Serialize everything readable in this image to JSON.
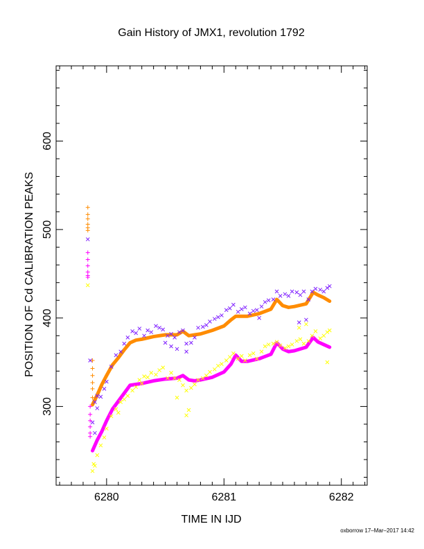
{
  "chart_data": {
    "type": "scatter",
    "title": "Gain History of JMX1, revolution 1792",
    "xlabel": "TIME IN IJD",
    "ylabel": "POSITION OF Cd CALIBRATION PEAKS",
    "xlim": [
      6279.57,
      6282.22
    ],
    "ylim": [
      211,
      685
    ],
    "x_ticks": [
      "6280",
      "6281",
      "6282"
    ],
    "y_ticks": [
      "300",
      "400",
      "500",
      "600"
    ],
    "x_tick_values": [
      6280,
      6281,
      6282
    ],
    "y_tick_values": [
      300,
      400,
      500,
      600
    ],
    "grid": false,
    "colors": {
      "orange": "#ff8c00",
      "purple": "#7f1fff",
      "magenta": "#ff00ff",
      "yellow": "#ffff00"
    },
    "series": [
      {
        "color": "#ff8c00",
        "marker": "line",
        "x": [
          6279.88,
          6279.92,
          6279.96,
          6280.0,
          6280.05,
          6280.1,
          6280.15,
          6280.2,
          6280.25,
          6280.3,
          6280.4,
          6280.5,
          6280.6,
          6280.65,
          6280.7,
          6280.75,
          6280.8,
          6280.9,
          6281.0,
          6281.06,
          6281.1,
          6281.15,
          6281.2,
          6281.3,
          6281.4,
          6281.45,
          6281.5,
          6281.55,
          6281.6,
          6281.7,
          6281.76,
          6281.8,
          6281.85,
          6281.9
        ],
        "y": [
          302,
          313,
          325,
          335,
          347,
          355,
          364,
          372,
          375,
          376,
          379,
          381,
          381,
          385,
          380,
          381,
          382,
          386,
          391,
          398,
          402,
          402,
          402,
          405,
          410,
          421,
          414,
          412,
          413,
          416,
          429,
          426,
          423,
          419
        ]
      },
      {
        "color": "#ff8c00",
        "marker": "plus",
        "x": [
          6279.84,
          6279.84,
          6279.84,
          6279.84,
          6279.84,
          6279.84,
          6279.88,
          6279.88,
          6279.88,
          6279.88,
          6279.88,
          6279.88
        ],
        "y": [
          525,
          517,
          512,
          506,
          502,
          499,
          352,
          343,
          335,
          327,
          320,
          310
        ]
      },
      {
        "color": "#7f1fff",
        "marker": "cross",
        "x": [
          6279.84,
          6279.86,
          6279.88,
          6279.9,
          6279.92,
          6279.95,
          6279.98,
          6280.0,
          6280.04,
          6280.08,
          6280.12,
          6280.15,
          6280.18,
          6280.22,
          6280.25,
          6280.28,
          6280.32,
          6280.35,
          6280.38,
          6280.42,
          6280.45,
          6280.48,
          6280.52,
          6280.55,
          6280.58,
          6280.62,
          6280.65,
          6280.68,
          6280.72,
          6280.75,
          6280.78,
          6280.82,
          6280.85,
          6280.88,
          6280.92,
          6280.95,
          6280.98,
          6281.02,
          6281.05,
          6281.08,
          6281.12,
          6281.15,
          6281.18,
          6281.22,
          6281.25,
          6281.28,
          6281.32,
          6281.35,
          6281.38,
          6281.42,
          6281.45,
          6281.48,
          6281.52,
          6281.55,
          6281.58,
          6281.62,
          6281.65,
          6281.68,
          6281.72,
          6281.75,
          6281.78,
          6281.82,
          6281.85,
          6281.88,
          6281.9,
          6280.6,
          6280.68,
          6280.55,
          6281.64,
          6281.7,
          6279.9,
          6279.92,
          6280.5,
          6281.3
        ],
        "y": [
          489,
          352,
          282,
          305,
          298,
          311,
          320,
          328,
          345,
          358,
          362,
          371,
          378,
          385,
          383,
          388,
          380,
          386,
          384,
          391,
          389,
          387,
          380,
          382,
          378,
          384,
          386,
          371,
          372,
          378,
          389,
          390,
          392,
          396,
          399,
          401,
          403,
          409,
          411,
          415,
          407,
          410,
          412,
          405,
          408,
          409,
          413,
          418,
          420,
          421,
          430,
          425,
          427,
          425,
          430,
          429,
          426,
          430,
          421,
          430,
          433,
          432,
          430,
          434,
          436,
          365,
          362,
          368,
          395,
          398,
          270,
          312,
          372,
          400
        ]
      },
      {
        "color": "#ff00ff",
        "marker": "line",
        "x": [
          6279.88,
          6279.92,
          6279.96,
          6280.0,
          6280.05,
          6280.1,
          6280.15,
          6280.2,
          6280.25,
          6280.3,
          6280.4,
          6280.5,
          6280.6,
          6280.65,
          6280.7,
          6280.75,
          6280.8,
          6280.9,
          6281.0,
          6281.06,
          6281.1,
          6281.15,
          6281.2,
          6281.3,
          6281.4,
          6281.45,
          6281.5,
          6281.55,
          6281.6,
          6281.7,
          6281.76,
          6281.8,
          6281.85,
          6281.9
        ],
        "y": [
          250,
          262,
          272,
          284,
          297,
          306,
          315,
          324,
          325,
          326,
          329,
          331,
          332,
          335,
          330,
          329,
          330,
          333,
          339,
          348,
          358,
          351,
          351,
          354,
          359,
          372,
          365,
          362,
          363,
          367,
          378,
          373,
          370,
          367
        ]
      },
      {
        "color": "#ff00ff",
        "marker": "plus",
        "x": [
          6279.84,
          6279.84,
          6279.84,
          6279.84,
          6279.84,
          6279.84,
          6279.86,
          6279.86,
          6279.86,
          6279.86,
          6279.86,
          6279.86
        ],
        "y": [
          474,
          466,
          459,
          452,
          448,
          446,
          300,
          291,
          284,
          277,
          270,
          266
        ]
      },
      {
        "color": "#ffff00",
        "marker": "cross",
        "x": [
          6279.84,
          6279.9,
          6279.92,
          6279.95,
          6279.98,
          6280.0,
          6280.04,
          6280.08,
          6280.12,
          6280.15,
          6280.18,
          6280.22,
          6280.25,
          6280.28,
          6280.32,
          6280.35,
          6280.38,
          6280.42,
          6280.45,
          6280.48,
          6280.52,
          6280.55,
          6280.58,
          6280.62,
          6280.65,
          6280.68,
          6280.72,
          6280.75,
          6280.78,
          6280.82,
          6280.85,
          6280.88,
          6280.92,
          6280.95,
          6280.98,
          6281.02,
          6281.05,
          6281.08,
          6281.12,
          6281.15,
          6281.18,
          6281.22,
          6281.25,
          6281.28,
          6281.32,
          6281.35,
          6281.38,
          6281.42,
          6281.45,
          6281.48,
          6281.52,
          6281.55,
          6281.58,
          6281.62,
          6281.65,
          6281.68,
          6281.72,
          6281.75,
          6281.78,
          6281.82,
          6281.85,
          6281.88,
          6281.9,
          6279.88,
          6279.89,
          6280.68,
          6280.7,
          6280.6,
          6281.64,
          6281.7,
          6281.88,
          6280.1,
          6280.3
        ],
        "y": [
          437,
          233,
          245,
          256,
          265,
          275,
          289,
          297,
          305,
          308,
          312,
          318,
          322,
          330,
          334,
          333,
          338,
          336,
          341,
          344,
          332,
          338,
          332,
          330,
          324,
          318,
          321,
          325,
          330,
          332,
          335,
          339,
          342,
          346,
          348,
          352,
          356,
          360,
          354,
          357,
          352,
          358,
          360,
          354,
          362,
          368,
          370,
          371,
          373,
          369,
          366,
          368,
          370,
          374,
          376,
          371,
          374,
          380,
          385,
          377,
          380,
          384,
          386,
          227,
          235,
          290,
          296,
          310,
          389,
          393,
          350,
          293,
          326
        ]
      }
    ]
  },
  "footer": {
    "stamp": "oxborrow 17–Mar–2017 14:42"
  }
}
